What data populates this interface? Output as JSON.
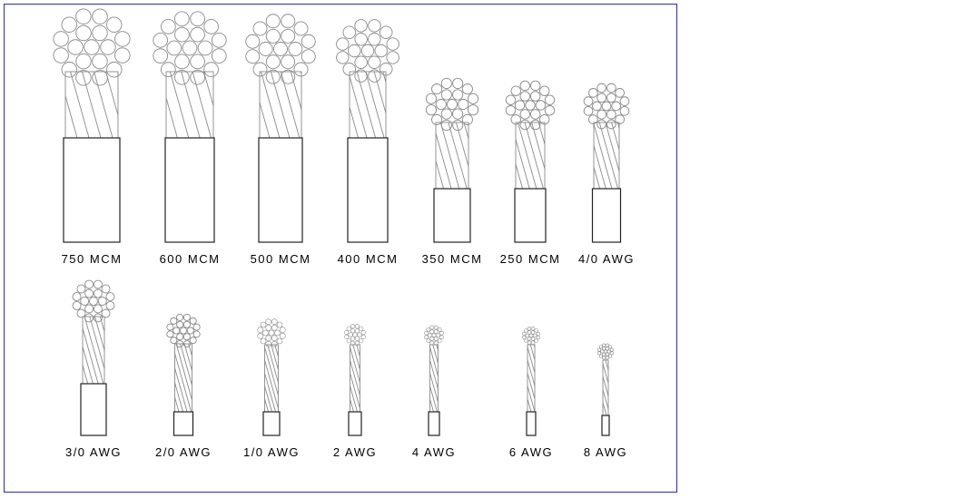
{
  "colors": {
    "frame_border": "#2b2bb3",
    "outline": "#222222",
    "strand_outline": "#8a8a8a",
    "wire_hatch": "#8a8a8a"
  },
  "diagram": {
    "rows": [
      {
        "cables": [
          {
            "label": "750 MCM"
          },
          {
            "label": "600 MCM"
          },
          {
            "label": "500 MCM"
          },
          {
            "label": "400 MCM"
          },
          {
            "label": "350 MCM"
          },
          {
            "label": "250 MCM"
          },
          {
            "label": "4/0 AWG"
          }
        ]
      },
      {
        "cables": [
          {
            "label": "3/0 AWG"
          },
          {
            "label": "2/0 AWG"
          },
          {
            "label": "1/0 AWG"
          },
          {
            "label": "2 AWG"
          },
          {
            "label": "4 AWG"
          },
          {
            "label": "6 AWG"
          },
          {
            "label": "8 AWG"
          }
        ]
      }
    ]
  }
}
